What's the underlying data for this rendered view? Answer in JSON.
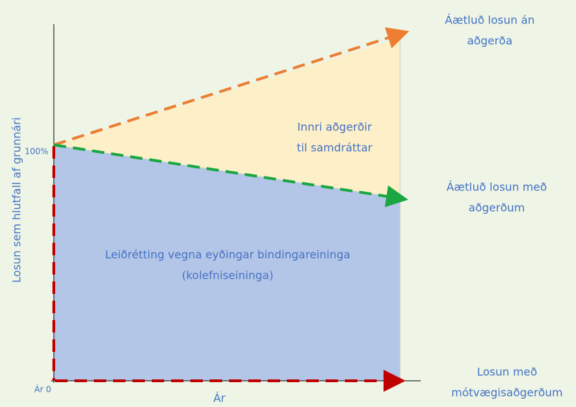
{
  "axes": {
    "y_label": "Losun sem hlutfall af grunnári",
    "y_tick": "100%",
    "origin": "Ár 0",
    "x_label": "Ár"
  },
  "labels": {
    "without_measures": [
      "Áætluð losun án",
      "aðgerða"
    ],
    "internal": [
      "Innri aðgerðir",
      "til samdráttar"
    ],
    "with_measures": [
      "Áætluð losun með",
      "aðgerðum"
    ],
    "correction": [
      "Leiðrétting vegna eyðingar bindingareininga",
      "(kolefniseininga)"
    ],
    "mitigation": [
      "Losun með",
      "mótvægisaðgerðum"
    ]
  }
}
